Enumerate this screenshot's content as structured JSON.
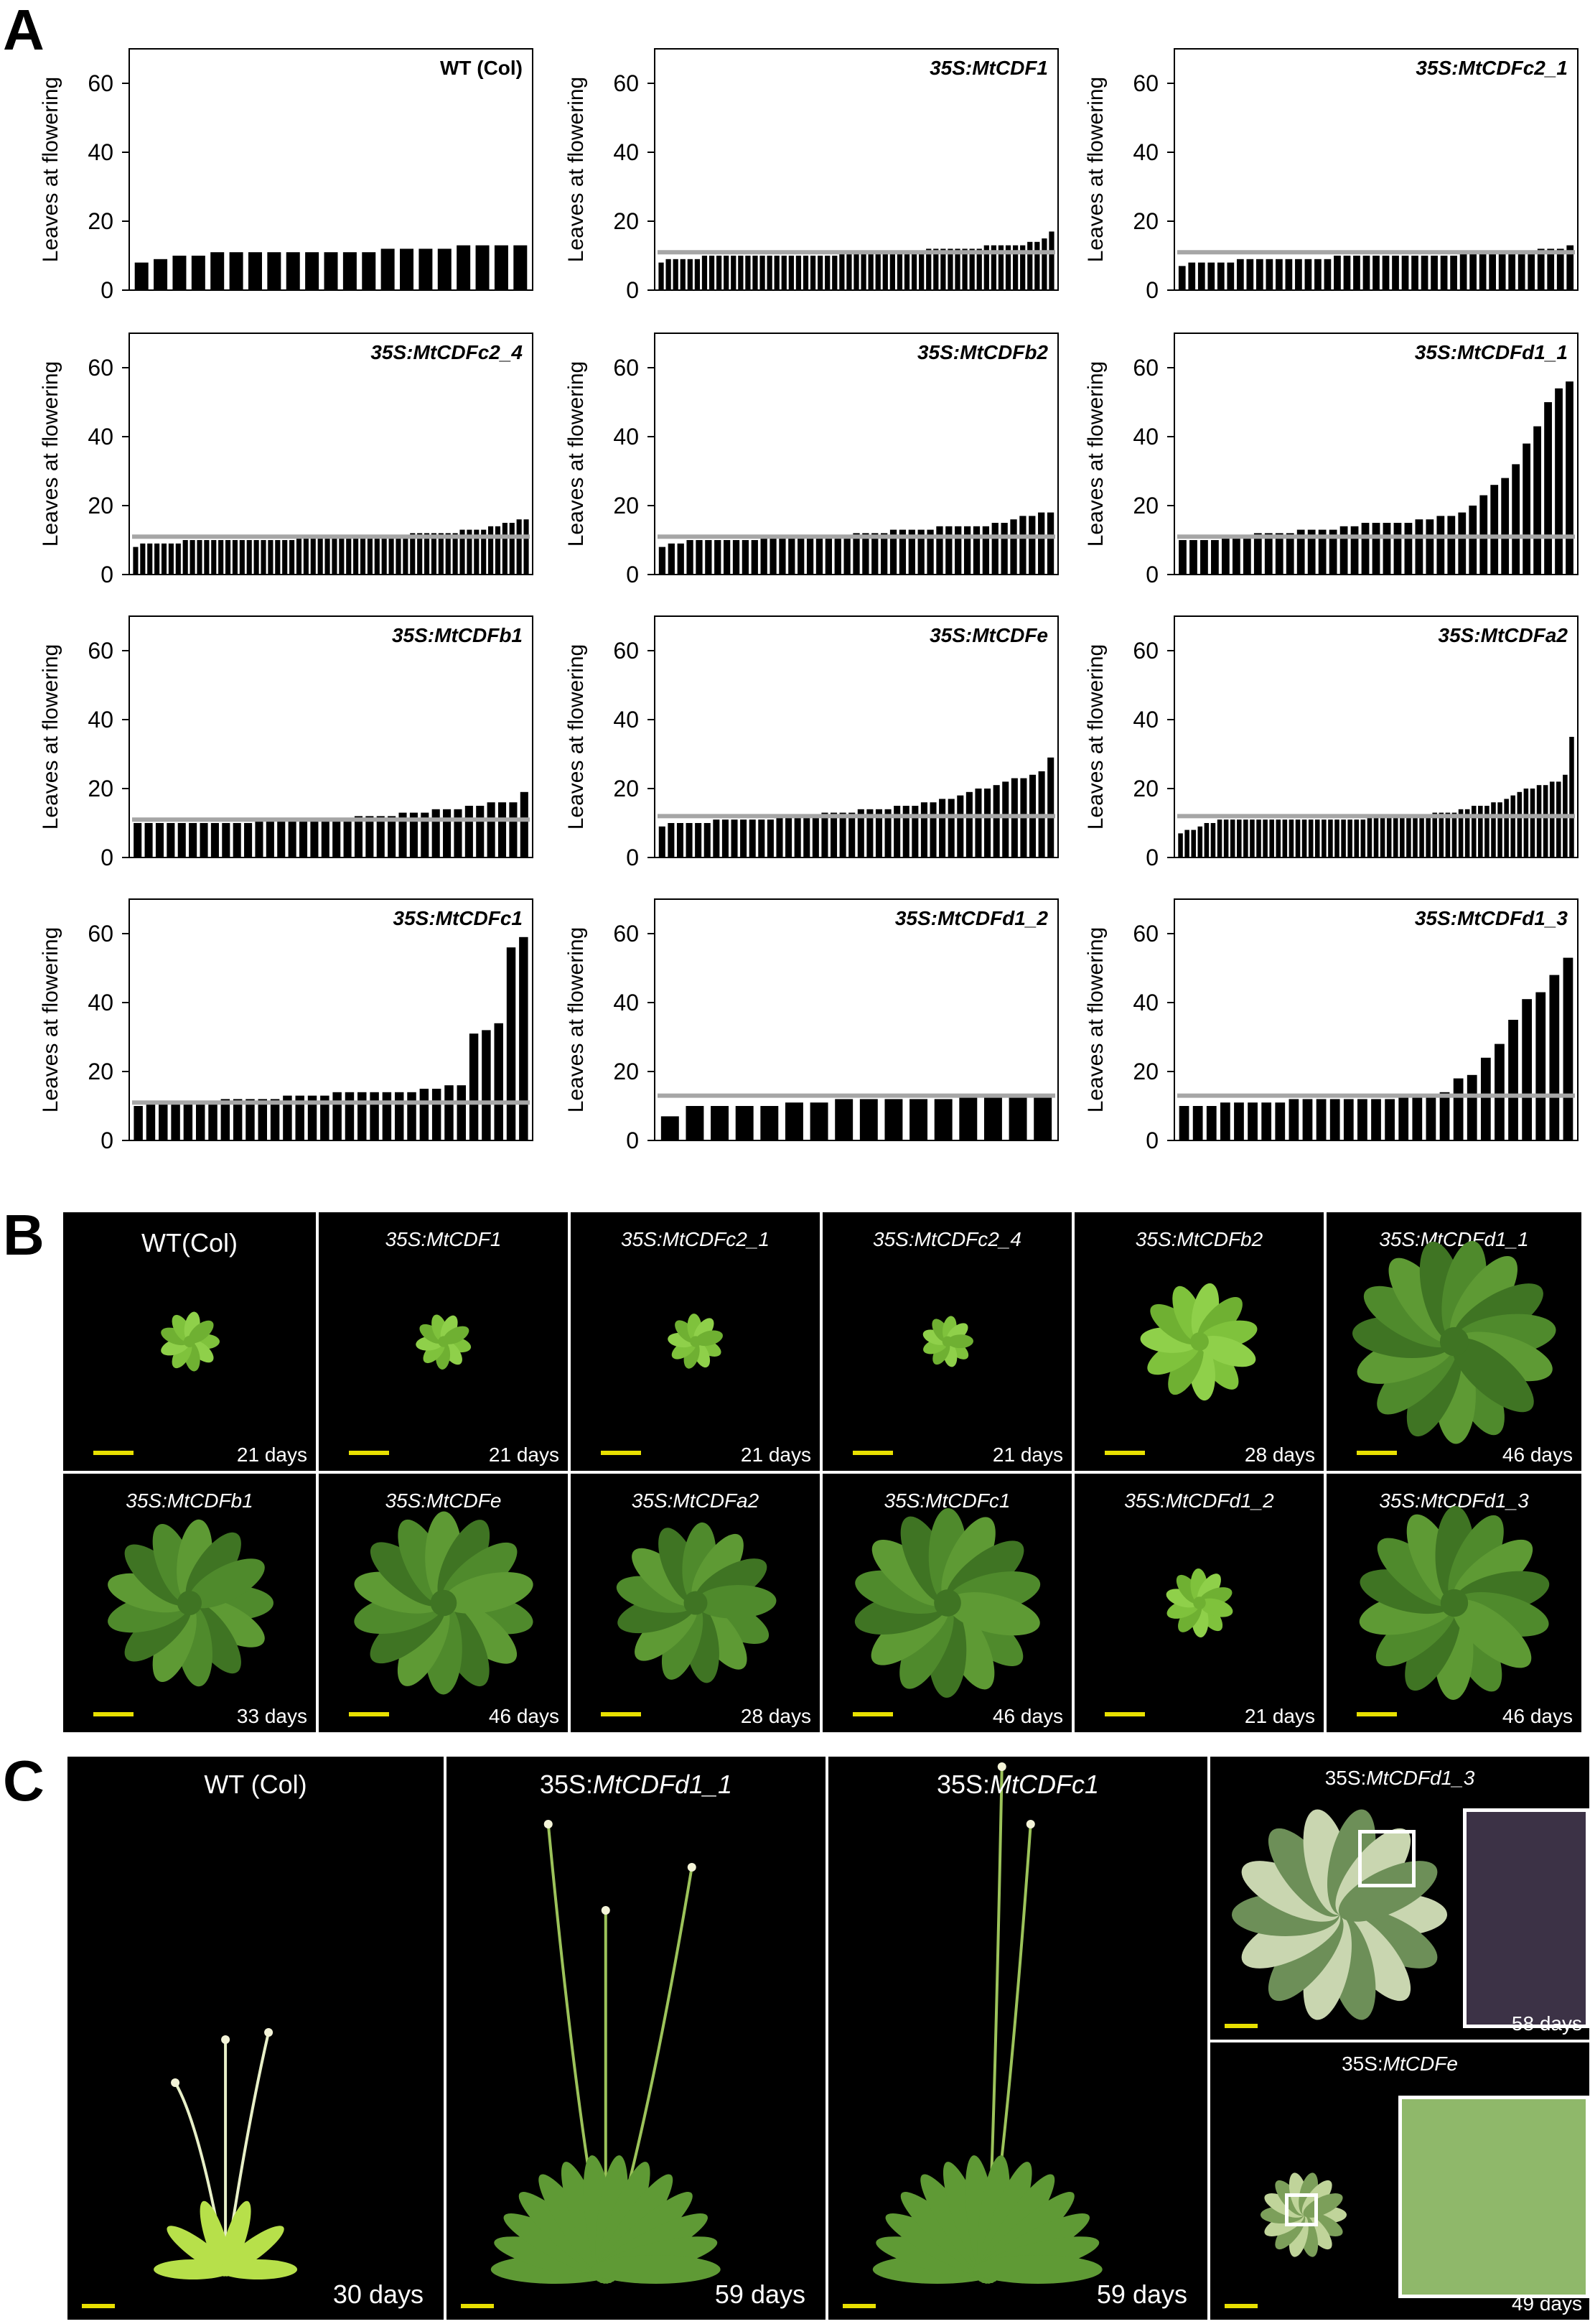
{
  "panel_letters": {
    "a": "A",
    "b": "B",
    "c": "C"
  },
  "colors": {
    "bar": "#000000",
    "wt_line": "#a6a6a6",
    "photo_bg": "#000000",
    "scale_bar": "#e8e000"
  },
  "chart_data": [
    {
      "type": "bar",
      "title": "WT (Col)",
      "title_italic": false,
      "ylabel": "Leaves at flowering",
      "ylim": [
        0,
        70
      ],
      "yticks": [
        0,
        20,
        40,
        60
      ],
      "wt_mean": null,
      "values": [
        8,
        9,
        10,
        10,
        11,
        11,
        11,
        11,
        11,
        11,
        11,
        11,
        11,
        12,
        12,
        12,
        12,
        13,
        13,
        13,
        13
      ]
    },
    {
      "type": "bar",
      "title": "35S:MtCDF1",
      "title_italic": true,
      "ylabel": "Leaves at flowering",
      "ylim": [
        0,
        70
      ],
      "yticks": [
        0,
        20,
        40,
        60
      ],
      "wt_mean": 11,
      "values": [
        8,
        9,
        9,
        9,
        9,
        9,
        10,
        10,
        10,
        10,
        10,
        10,
        10,
        10,
        10,
        10,
        10,
        10,
        10,
        10,
        10,
        10,
        10,
        10,
        10,
        11,
        11,
        11,
        11,
        11,
        11,
        11,
        11,
        11,
        11,
        11,
        11,
        12,
        12,
        12,
        12,
        12,
        12,
        12,
        12,
        13,
        13,
        13,
        13,
        13,
        13,
        14,
        14,
        15,
        17
      ]
    },
    {
      "type": "bar",
      "title": "35S:MtCDFc2_1",
      "title_italic": true,
      "ylabel": "Leaves at flowering",
      "ylim": [
        0,
        70
      ],
      "yticks": [
        0,
        20,
        40,
        60
      ],
      "wt_mean": 11,
      "values": [
        7,
        8,
        8,
        8,
        8,
        8,
        9,
        9,
        9,
        9,
        9,
        9,
        9,
        9,
        9,
        9,
        10,
        10,
        10,
        10,
        10,
        10,
        10,
        10,
        10,
        10,
        10,
        10,
        10,
        11,
        11,
        11,
        11,
        11,
        11,
        11,
        11,
        12,
        12,
        12,
        13
      ]
    },
    {
      "type": "bar",
      "title": "35S:MtCDFc2_4",
      "title_italic": true,
      "ylabel": "Leaves at flowering",
      "ylim": [
        0,
        70
      ],
      "yticks": [
        0,
        20,
        40,
        60
      ],
      "wt_mean": 11,
      "values": [
        8,
        9,
        9,
        9,
        9,
        9,
        9,
        10,
        10,
        10,
        10,
        10,
        10,
        10,
        10,
        10,
        10,
        10,
        10,
        10,
        10,
        10,
        10,
        11,
        11,
        11,
        11,
        11,
        11,
        11,
        11,
        11,
        11,
        11,
        11,
        11,
        11,
        11,
        11,
        12,
        12,
        12,
        12,
        12,
        12,
        12,
        13,
        13,
        13,
        13,
        14,
        14,
        15,
        15,
        16,
        16
      ]
    },
    {
      "type": "bar",
      "title": "35S:MtCDFb2",
      "title_italic": true,
      "ylabel": "Leaves at flowering",
      "ylim": [
        0,
        70
      ],
      "yticks": [
        0,
        20,
        40,
        60
      ],
      "wt_mean": 11,
      "values": [
        8,
        9,
        9,
        10,
        10,
        10,
        10,
        10,
        10,
        10,
        10,
        11,
        11,
        11,
        11,
        11,
        11,
        11,
        11,
        11,
        11,
        12,
        12,
        12,
        12,
        13,
        13,
        13,
        13,
        13,
        14,
        14,
        14,
        14,
        14,
        14,
        15,
        15,
        16,
        17,
        17,
        18,
        18
      ]
    },
    {
      "type": "bar",
      "title": "35S:MtCDFd1_1",
      "title_italic": true,
      "ylabel": "Leaves at flowering",
      "ylim": [
        0,
        70
      ],
      "yticks": [
        0,
        20,
        40,
        60
      ],
      "wt_mean": 11,
      "values": [
        10,
        10,
        10,
        10,
        11,
        11,
        11,
        12,
        12,
        12,
        12,
        13,
        13,
        13,
        13,
        14,
        14,
        15,
        15,
        15,
        15,
        15,
        16,
        16,
        17,
        17,
        18,
        20,
        23,
        26,
        28,
        32,
        38,
        43,
        50,
        54,
        56
      ]
    },
    {
      "type": "bar",
      "title": "35S:MtCDFb1",
      "title_italic": true,
      "ylabel": "Leaves at flowering",
      "ylim": [
        0,
        70
      ],
      "yticks": [
        0,
        20,
        40,
        60
      ],
      "wt_mean": 11,
      "values": [
        10,
        10,
        10,
        10,
        10,
        10,
        10,
        10,
        10,
        10,
        10,
        11,
        11,
        11,
        11,
        11,
        11,
        11,
        11,
        11,
        12,
        12,
        12,
        12,
        13,
        13,
        13,
        14,
        14,
        14,
        15,
        15,
        16,
        16,
        16,
        19
      ]
    },
    {
      "type": "bar",
      "title": "35S:MtCDFe",
      "title_italic": true,
      "ylabel": "Leaves at flowering",
      "ylim": [
        0,
        70
      ],
      "yticks": [
        0,
        20,
        40,
        60
      ],
      "wt_mean": 12,
      "values": [
        9,
        10,
        10,
        10,
        10,
        10,
        11,
        11,
        11,
        11,
        11,
        11,
        11,
        12,
        12,
        12,
        12,
        12,
        13,
        13,
        13,
        13,
        14,
        14,
        14,
        14,
        15,
        15,
        15,
        16,
        16,
        17,
        17,
        18,
        19,
        20,
        20,
        21,
        22,
        23,
        23,
        24,
        25,
        29
      ]
    },
    {
      "type": "bar",
      "title": "35S:MtCDFa2",
      "title_italic": true,
      "ylabel": "Leaves at flowering",
      "ylim": [
        0,
        70
      ],
      "yticks": [
        0,
        20,
        40,
        60
      ],
      "wt_mean": 12,
      "values": [
        7,
        8,
        8,
        9,
        10,
        10,
        11,
        11,
        11,
        11,
        11,
        11,
        11,
        11,
        11,
        11,
        11,
        11,
        11,
        11,
        11,
        11,
        11,
        11,
        11,
        11,
        11,
        11,
        11,
        12,
        12,
        12,
        12,
        12,
        12,
        12,
        12,
        12,
        12,
        13,
        13,
        13,
        13,
        14,
        14,
        15,
        15,
        15,
        16,
        16,
        17,
        18,
        19,
        20,
        20,
        21,
        21,
        22,
        22,
        24,
        35
      ]
    },
    {
      "type": "bar",
      "title": "35S:MtCDFc1",
      "title_italic": true,
      "ylabel": "Leaves at flowering",
      "ylim": [
        0,
        70
      ],
      "yticks": [
        0,
        20,
        40,
        60
      ],
      "wt_mean": 11,
      "values": [
        10,
        11,
        11,
        11,
        11,
        11,
        11,
        12,
        12,
        12,
        12,
        12,
        13,
        13,
        13,
        13,
        14,
        14,
        14,
        14,
        14,
        14,
        14,
        15,
        15,
        16,
        16,
        31,
        32,
        34,
        56,
        59
      ]
    },
    {
      "type": "bar",
      "title": "35S:MtCDFd1_2",
      "title_italic": true,
      "ylabel": "Leaves at flowering",
      "ylim": [
        0,
        70
      ],
      "yticks": [
        0,
        20,
        40,
        60
      ],
      "wt_mean": 13,
      "values": [
        7,
        10,
        10,
        10,
        10,
        11,
        11,
        12,
        12,
        12,
        12,
        12,
        13,
        13,
        13,
        13
      ]
    },
    {
      "type": "bar",
      "title": "35S:MtCDFd1_3",
      "title_italic": true,
      "ylabel": "Leaves at flowering",
      "ylim": [
        0,
        70
      ],
      "yticks": [
        0,
        20,
        40,
        60
      ],
      "wt_mean": 13,
      "values": [
        10,
        10,
        10,
        11,
        11,
        11,
        11,
        11,
        12,
        12,
        12,
        12,
        12,
        12,
        12,
        12,
        13,
        13,
        13,
        14,
        18,
        19,
        24,
        28,
        35,
        41,
        43,
        48,
        53
      ]
    }
  ],
  "panel_b": {
    "row1": [
      {
        "label": "WT(Col)",
        "italic": false,
        "days": "21 days",
        "size": 0.28
      },
      {
        "label": "35S:MtCDF1",
        "italic": true,
        "days": "21 days",
        "size": 0.26
      },
      {
        "label": "35S:MtCDFc2_1",
        "italic": true,
        "days": "21 days",
        "size": 0.26
      },
      {
        "label": "35S:MtCDFc2_4",
        "italic": true,
        "days": "21 days",
        "size": 0.24
      },
      {
        "label": "35S:MtCDFb2",
        "italic": true,
        "days": "28 days",
        "size": 0.55
      },
      {
        "label": "35S:MtCDFd1_1",
        "italic": true,
        "days": "46 days",
        "size": 0.95
      }
    ],
    "row2": [
      {
        "label": "35S:MtCDFb1",
        "italic": true,
        "days": "33 days",
        "size": 0.78
      },
      {
        "label": "35S:MtCDFe",
        "italic": true,
        "days": "46 days",
        "size": 0.85
      },
      {
        "label": "35S:MtCDFa2",
        "italic": true,
        "days": "28 days",
        "size": 0.75
      },
      {
        "label": "35S:MtCDFc1",
        "italic": true,
        "days": "46 days",
        "size": 0.88
      },
      {
        "label": "35S:MtCDFd1_2",
        "italic": true,
        "days": "21 days",
        "size": 0.32
      },
      {
        "label": "35S:MtCDFd1_3",
        "italic": true,
        "days": "46 days",
        "size": 0.9
      }
    ]
  },
  "panel_c": [
    {
      "label_plain": "WT (Col)",
      "label_prefix": "",
      "label_italic": "",
      "days": "30 days"
    },
    {
      "label_plain": "",
      "label_prefix": "35S:",
      "label_italic": "MtCDFd1_1",
      "days": "59 days"
    },
    {
      "label_plain": "",
      "label_prefix": "35S:",
      "label_italic": "MtCDFc1",
      "days": "59 days"
    },
    {
      "label_plain": "",
      "label_prefix": "35S:",
      "label_italic": "MtCDFd1_3",
      "days": "58 days"
    },
    {
      "label_plain": "",
      "label_prefix": "35S:",
      "label_italic": "MtCDFe",
      "days": "49 days"
    }
  ]
}
